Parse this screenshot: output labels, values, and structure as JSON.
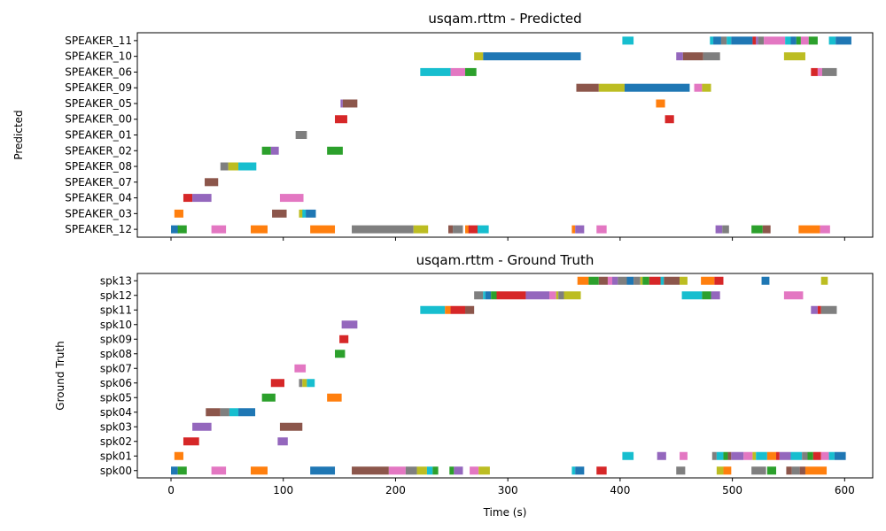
{
  "palette": [
    "#1f77b4",
    "#ff7f0e",
    "#2ca02c",
    "#d62728",
    "#9467bd",
    "#8c564b",
    "#e377c2",
    "#7f7f7f",
    "#bcbd22",
    "#17becf"
  ],
  "chart_data": [
    {
      "type": "broken_barh",
      "title": "usqam.rttm - Predicted",
      "ylabel": "Predicted",
      "xlabel": "",
      "xlim": [
        -30,
        625
      ],
      "xticks": [
        0,
        100,
        200,
        300,
        400,
        500,
        600
      ],
      "show_xtick_labels": false,
      "grid": false,
      "categories": [
        "SPEAKER_12",
        "SPEAKER_03",
        "SPEAKER_04",
        "SPEAKER_07",
        "SPEAKER_08",
        "SPEAKER_02",
        "SPEAKER_01",
        "SPEAKER_00",
        "SPEAKER_05",
        "SPEAKER_09",
        "SPEAKER_06",
        "SPEAKER_10",
        "SPEAKER_11"
      ],
      "segments": [
        [
          [
            0,
            7,
            0
          ],
          [
            6,
            14,
            2
          ],
          [
            36,
            49,
            6
          ],
          [
            71,
            86,
            1
          ],
          [
            124,
            146,
            1
          ],
          [
            161,
            216,
            7
          ],
          [
            216,
            229,
            8
          ],
          [
            247,
            251,
            5
          ],
          [
            251,
            260,
            7
          ],
          [
            262,
            266,
            1
          ],
          [
            265,
            274,
            3
          ],
          [
            273,
            283,
            9
          ],
          [
            357,
            360,
            1
          ],
          [
            360,
            368,
            4
          ],
          [
            379,
            388,
            6
          ],
          [
            485,
            491,
            4
          ],
          [
            491,
            497,
            7
          ],
          [
            517,
            527,
            2
          ],
          [
            527,
            534,
            5
          ],
          [
            559,
            578,
            1
          ],
          [
            578,
            587,
            6
          ]
        ],
        [
          [
            3,
            11,
            1
          ],
          [
            90,
            103,
            5
          ],
          [
            114,
            118,
            8
          ],
          [
            117,
            120,
            9
          ],
          [
            120,
            129,
            0
          ]
        ],
        [
          [
            11,
            19,
            3
          ],
          [
            19,
            36,
            4
          ],
          [
            97,
            118,
            6
          ]
        ],
        [
          [
            30,
            42,
            5
          ]
        ],
        [
          [
            44,
            51,
            7
          ],
          [
            51,
            60,
            8
          ],
          [
            60,
            76,
            9
          ]
        ],
        [
          [
            81,
            89,
            2
          ],
          [
            89,
            96,
            4
          ],
          [
            139,
            153,
            2
          ]
        ],
        [
          [
            111,
            121,
            7
          ]
        ],
        [
          [
            146,
            157,
            3
          ],
          [
            440,
            448,
            3
          ]
        ],
        [
          [
            151,
            153,
            4
          ],
          [
            153,
            166,
            5
          ],
          [
            432,
            440,
            1
          ]
        ],
        [
          [
            361,
            381,
            5
          ],
          [
            381,
            404,
            8
          ],
          [
            404,
            462,
            0
          ],
          [
            466,
            473,
            6
          ],
          [
            473,
            481,
            8
          ]
        ],
        [
          [
            222,
            249,
            9
          ],
          [
            249,
            262,
            6
          ],
          [
            262,
            272,
            2
          ],
          [
            570,
            576,
            3
          ],
          [
            576,
            580,
            6
          ],
          [
            580,
            593,
            7
          ]
        ],
        [
          [
            270,
            278,
            8
          ],
          [
            278,
            365,
            0
          ],
          [
            450,
            456,
            4
          ],
          [
            456,
            474,
            5
          ],
          [
            474,
            489,
            7
          ],
          [
            546,
            565,
            8
          ]
        ],
        [
          [
            402,
            412,
            9
          ],
          [
            480,
            483,
            9
          ],
          [
            483,
            490,
            0
          ],
          [
            490,
            495,
            7
          ],
          [
            495,
            499,
            9
          ],
          [
            499,
            518,
            0
          ],
          [
            518,
            521,
            3
          ],
          [
            521,
            523,
            4
          ],
          [
            523,
            528,
            7
          ],
          [
            528,
            547,
            6
          ],
          [
            547,
            552,
            9
          ],
          [
            552,
            557,
            0
          ],
          [
            557,
            561,
            2
          ],
          [
            561,
            568,
            6
          ],
          [
            568,
            576,
            2
          ],
          [
            586,
            592,
            9
          ],
          [
            592,
            606,
            0
          ]
        ]
      ]
    },
    {
      "type": "broken_barh",
      "title": "usqam.rttm - Ground Truth",
      "ylabel": "Ground Truth",
      "xlabel": "Time (s)",
      "xlim": [
        -30,
        625
      ],
      "xticks": [
        0,
        100,
        200,
        300,
        400,
        500,
        600
      ],
      "show_xtick_labels": true,
      "grid": false,
      "categories": [
        "spk00",
        "spk01",
        "spk02",
        "spk03",
        "spk04",
        "spk05",
        "spk06",
        "spk07",
        "spk08",
        "spk09",
        "spk10",
        "spk11",
        "spk12",
        "spk13"
      ],
      "segments": [
        [
          [
            0,
            6,
            0
          ],
          [
            6,
            14,
            2
          ],
          [
            36,
            49,
            6
          ],
          [
            71,
            86,
            1
          ],
          [
            124,
            146,
            0
          ],
          [
            161,
            194,
            5
          ],
          [
            194,
            209,
            6
          ],
          [
            209,
            219,
            7
          ],
          [
            219,
            228,
            8
          ],
          [
            228,
            233,
            9
          ],
          [
            233,
            238,
            2
          ],
          [
            248,
            252,
            2
          ],
          [
            252,
            260,
            4
          ],
          [
            266,
            274,
            6
          ],
          [
            274,
            284,
            8
          ],
          [
            357,
            360,
            9
          ],
          [
            360,
            368,
            0
          ],
          [
            379,
            388,
            3
          ],
          [
            450,
            458,
            7
          ],
          [
            486,
            492,
            8
          ],
          [
            492,
            499,
            1
          ],
          [
            517,
            530,
            7
          ],
          [
            531,
            539,
            2
          ],
          [
            548,
            553,
            5
          ],
          [
            553,
            560,
            7
          ],
          [
            560,
            565,
            5
          ],
          [
            565,
            584,
            1
          ]
        ],
        [
          [
            3,
            11,
            1
          ],
          [
            402,
            412,
            9
          ],
          [
            433,
            441,
            4
          ],
          [
            453,
            460,
            6
          ],
          [
            482,
            486,
            7
          ],
          [
            486,
            492,
            9
          ],
          [
            492,
            496,
            2
          ],
          [
            496,
            499,
            5
          ],
          [
            499,
            510,
            4
          ],
          [
            510,
            518,
            6
          ],
          [
            518,
            521,
            8
          ],
          [
            521,
            531,
            9
          ],
          [
            531,
            539,
            1
          ],
          [
            539,
            542,
            3
          ],
          [
            542,
            552,
            4
          ],
          [
            552,
            562,
            9
          ],
          [
            562,
            567,
            7
          ],
          [
            567,
            572,
            2
          ],
          [
            572,
            579,
            3
          ],
          [
            579,
            586,
            6
          ],
          [
            586,
            591,
            9
          ],
          [
            591,
            601,
            0
          ]
        ],
        [
          [
            11,
            25,
            3
          ],
          [
            95,
            104,
            4
          ]
        ],
        [
          [
            19,
            36,
            4
          ],
          [
            97,
            117,
            5
          ]
        ],
        [
          [
            31,
            44,
            5
          ],
          [
            44,
            52,
            7
          ],
          [
            52,
            60,
            9
          ],
          [
            60,
            75,
            0
          ]
        ],
        [
          [
            81,
            93,
            2
          ],
          [
            139,
            152,
            1
          ]
        ],
        [
          [
            89,
            101,
            3
          ],
          [
            114,
            117,
            7
          ],
          [
            117,
            121,
            8
          ],
          [
            121,
            128,
            9
          ]
        ],
        [
          [
            110,
            120,
            6
          ]
        ],
        [
          [
            146,
            155,
            2
          ]
        ],
        [
          [
            150,
            158,
            3
          ]
        ],
        [
          [
            152,
            166,
            4
          ]
        ],
        [
          [
            222,
            244,
            9
          ],
          [
            244,
            249,
            1
          ],
          [
            249,
            262,
            3
          ],
          [
            262,
            270,
            5
          ],
          [
            570,
            576,
            4
          ],
          [
            576,
            579,
            3
          ],
          [
            579,
            593,
            7
          ]
        ],
        [
          [
            270,
            278,
            7
          ],
          [
            278,
            280,
            9
          ],
          [
            280,
            285,
            0
          ],
          [
            285,
            290,
            2
          ],
          [
            290,
            316,
            3
          ],
          [
            316,
            337,
            4
          ],
          [
            337,
            343,
            6
          ],
          [
            343,
            345,
            8
          ],
          [
            345,
            350,
            7
          ],
          [
            350,
            365,
            8
          ],
          [
            455,
            473,
            9
          ],
          [
            473,
            481,
            2
          ],
          [
            481,
            489,
            4
          ],
          [
            546,
            563,
            6
          ]
        ],
        [
          [
            362,
            372,
            1
          ],
          [
            372,
            381,
            2
          ],
          [
            381,
            389,
            5
          ],
          [
            389,
            393,
            6
          ],
          [
            393,
            398,
            4
          ],
          [
            398,
            406,
            7
          ],
          [
            406,
            412,
            0
          ],
          [
            412,
            418,
            7
          ],
          [
            418,
            420,
            8
          ],
          [
            420,
            426,
            2
          ],
          [
            426,
            436,
            3
          ],
          [
            436,
            439,
            9
          ],
          [
            439,
            453,
            5
          ],
          [
            453,
            460,
            8
          ],
          [
            472,
            484,
            1
          ],
          [
            484,
            492,
            3
          ],
          [
            526,
            533,
            0
          ],
          [
            579,
            585,
            8
          ]
        ]
      ]
    }
  ]
}
